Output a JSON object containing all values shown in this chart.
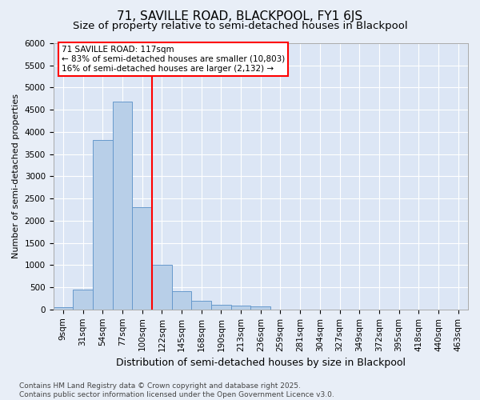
{
  "title": "71, SAVILLE ROAD, BLACKPOOL, FY1 6JS",
  "subtitle": "Size of property relative to semi-detached houses in Blackpool",
  "xlabel": "Distribution of semi-detached houses by size in Blackpool",
  "ylabel": "Number of semi-detached properties",
  "bins": [
    "9sqm",
    "31sqm",
    "54sqm",
    "77sqm",
    "100sqm",
    "122sqm",
    "145sqm",
    "168sqm",
    "190sqm",
    "213sqm",
    "236sqm",
    "259sqm",
    "281sqm",
    "304sqm",
    "327sqm",
    "349sqm",
    "372sqm",
    "395sqm",
    "418sqm",
    "440sqm",
    "463sqm"
  ],
  "bar_heights": [
    50,
    440,
    3820,
    4680,
    2300,
    1000,
    410,
    200,
    100,
    80,
    60,
    0,
    0,
    0,
    0,
    0,
    0,
    0,
    0,
    0,
    0
  ],
  "bar_color": "#b8cfe8",
  "bar_edge_color": "#6699cc",
  "vline_x": 4.5,
  "vline_color": "red",
  "annotation_line1": "71 SAVILLE ROAD: 117sqm",
  "annotation_line2": "← 83% of semi-detached houses are smaller (10,803)",
  "annotation_line3": "16% of semi-detached houses are larger (2,132) →",
  "annotation_box_color": "white",
  "annotation_box_edge": "red",
  "ylim": [
    0,
    6000
  ],
  "yticks": [
    0,
    500,
    1000,
    1500,
    2000,
    2500,
    3000,
    3500,
    4000,
    4500,
    5000,
    5500,
    6000
  ],
  "bg_color": "#e8eef7",
  "plot_bg_color": "#dce6f5",
  "footer": "Contains HM Land Registry data © Crown copyright and database right 2025.\nContains public sector information licensed under the Open Government Licence v3.0.",
  "title_fontsize": 11,
  "subtitle_fontsize": 9.5,
  "xlabel_fontsize": 9,
  "ylabel_fontsize": 8,
  "tick_fontsize": 7.5,
  "footer_fontsize": 6.5
}
